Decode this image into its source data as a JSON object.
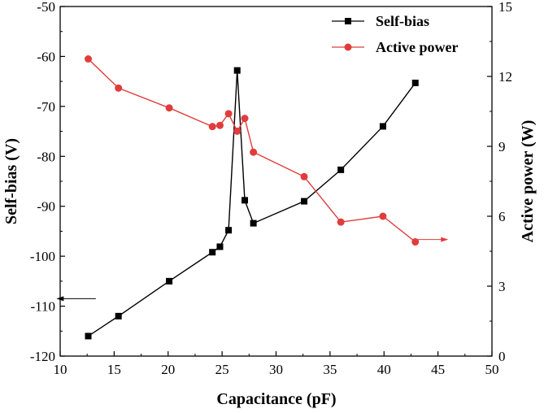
{
  "chart_data": {
    "type": "line",
    "title": "",
    "xlabel": "Capacitance (pF)",
    "ylabel_left": "Self-bias (V)",
    "ylabel_right": "Active power (W)",
    "xlim": [
      10,
      50
    ],
    "ylim_left": [
      -120,
      -50
    ],
    "ylim_right": [
      0,
      15
    ],
    "x_ticks": [
      "10",
      "15",
      "20",
      "25",
      "30",
      "35",
      "40",
      "45",
      "50"
    ],
    "y_left_ticks": [
      "-120",
      "-110",
      "-100",
      "-90",
      "-80",
      "-70",
      "-60",
      "-50"
    ],
    "y_right_ticks": [
      "0",
      "3",
      "6",
      "9",
      "12",
      "15"
    ],
    "grid": false,
    "legend_position": "top-right",
    "series": [
      {
        "name": "Self-bias",
        "axis": "left",
        "color": "#000000",
        "marker": "square",
        "points": [
          [
            12.6,
            -116.0
          ],
          [
            15.4,
            -112.0
          ],
          [
            20.1,
            -105.0
          ],
          [
            24.1,
            -99.2
          ],
          [
            24.8,
            -98.1
          ],
          [
            25.6,
            -94.8
          ],
          [
            26.4,
            -62.8
          ],
          [
            27.1,
            -88.8
          ],
          [
            27.9,
            -93.4
          ],
          [
            32.6,
            -89.0
          ],
          [
            36.0,
            -82.7
          ],
          [
            39.9,
            -74.0
          ],
          [
            42.9,
            -65.3
          ]
        ]
      },
      {
        "name": "Active power",
        "axis": "right",
        "color": "#e03c3c",
        "marker": "circle",
        "points": [
          [
            12.6,
            12.75
          ],
          [
            15.4,
            11.5
          ],
          [
            20.1,
            10.65
          ],
          [
            24.1,
            9.85
          ],
          [
            24.8,
            9.9
          ],
          [
            25.6,
            10.4
          ],
          [
            26.4,
            9.65
          ],
          [
            27.1,
            10.2
          ],
          [
            27.9,
            8.75
          ],
          [
            32.6,
            7.7
          ],
          [
            36.0,
            5.75
          ],
          [
            39.9,
            6.0
          ],
          [
            42.9,
            4.9
          ]
        ]
      }
    ],
    "annotations": [
      {
        "name": "left-axis-arrow",
        "points_to": "left",
        "color": "#000000",
        "x_range": [
          13.3,
          9.8
        ],
        "y": -108.5,
        "axis": "left"
      },
      {
        "name": "right-axis-arrow",
        "points_to": "right",
        "color": "#e03c3c",
        "x_range": [
          42.7,
          45.8
        ],
        "y": 5.0,
        "axis": "right"
      }
    ]
  }
}
